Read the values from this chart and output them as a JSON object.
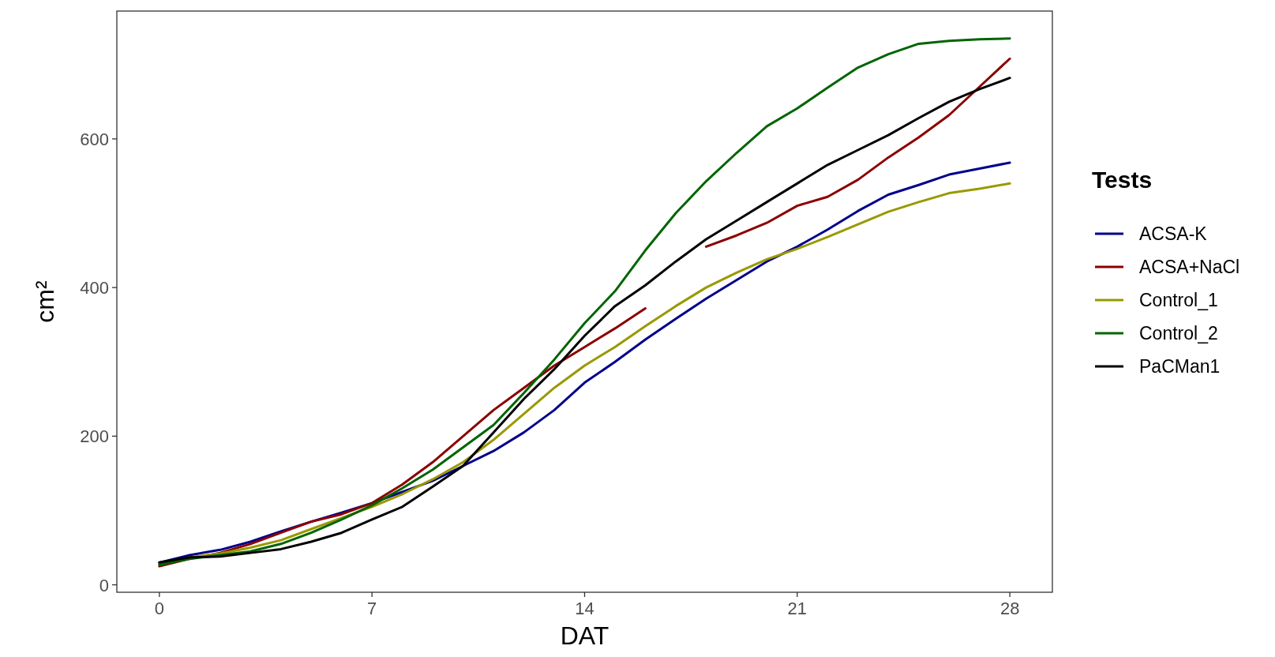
{
  "chart_data": {
    "type": "line",
    "xlabel": "DAT",
    "ylabel": "cm²",
    "legend_title": "Tests",
    "legend": "right",
    "grid": false,
    "x": [
      0,
      1,
      2,
      3,
      4,
      5,
      6,
      7,
      8,
      9,
      10,
      11,
      12,
      13,
      14,
      15,
      16,
      17,
      18,
      19,
      20,
      21,
      22,
      23,
      24,
      25,
      26,
      27,
      28
    ],
    "xlim": [
      -1.4,
      29.4
    ],
    "xticks": [
      0,
      7,
      14,
      21,
      28
    ],
    "ylim": [
      -10,
      772
    ],
    "yticks": [
      0,
      200,
      400,
      600
    ],
    "series": [
      {
        "name": "ACSA-K",
        "color": "#00008b",
        "values": [
          30,
          40,
          47,
          58,
          72,
          85,
          97,
          110,
          125,
          140,
          160,
          180,
          205,
          235,
          272,
          300,
          330,
          358,
          385,
          410,
          435,
          455,
          478,
          503,
          525,
          538,
          552,
          560,
          568
        ]
      },
      {
        "name": "ACSA+NaCl",
        "color": "#8b0000",
        "values": [
          25,
          35,
          43,
          55,
          70,
          85,
          95,
          110,
          135,
          165,
          200,
          235,
          265,
          295,
          320,
          345,
          372,
          null,
          455,
          470,
          487,
          510,
          522,
          545,
          575,
          602,
          632,
          670,
          708
        ]
      },
      {
        "name": "Control_1",
        "color": "#999900",
        "values": [
          28,
          37,
          42,
          50,
          60,
          75,
          90,
          105,
          122,
          142,
          165,
          195,
          230,
          265,
          295,
          320,
          348,
          375,
          400,
          420,
          438,
          452,
          468,
          485,
          502,
          515,
          527,
          533,
          540
        ]
      },
      {
        "name": "Control_2",
        "color": "#006400",
        "values": [
          27,
          35,
          40,
          45,
          55,
          70,
          88,
          107,
          130,
          155,
          185,
          215,
          258,
          303,
          352,
          395,
          450,
          500,
          543,
          581,
          617,
          641,
          669,
          696,
          714,
          728,
          732,
          734,
          735
        ]
      },
      {
        "name": "PaCMan1",
        "color": "#000000",
        "values": [
          30,
          37,
          38,
          43,
          48,
          58,
          70,
          88,
          105,
          132,
          160,
          205,
          250,
          290,
          335,
          375,
          403,
          435,
          465,
          490,
          515,
          540,
          565,
          585,
          605,
          628,
          650,
          667,
          682
        ]
      }
    ]
  }
}
